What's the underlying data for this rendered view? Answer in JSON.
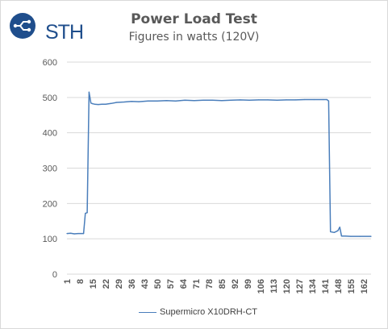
{
  "header": {
    "logo_text": "STH"
  },
  "colors": {
    "series": "#4a7ebb",
    "gridline": "#d9d9d9",
    "axis_text": "#595959",
    "logo": "#1f4e8c"
  },
  "chart_data": {
    "type": "line",
    "title": "Power Load Test",
    "subtitle": "Figures in watts (120V)",
    "xlabel": "",
    "ylabel": "",
    "ylim": [
      0,
      600
    ],
    "y_ticks": [
      0,
      100,
      200,
      300,
      400,
      500,
      600
    ],
    "x_range": [
      1,
      166
    ],
    "x_ticks": [
      1,
      8,
      15,
      22,
      29,
      36,
      43,
      50,
      57,
      64,
      71,
      78,
      85,
      92,
      99,
      106,
      113,
      120,
      127,
      134,
      141,
      148,
      155,
      162
    ],
    "grid": true,
    "legend_position": "bottom",
    "series": [
      {
        "name": "Supermicro X10DRH-CT",
        "x": [
          1,
          3,
          5,
          7,
          10,
          11,
          12,
          13,
          14,
          15,
          16,
          18,
          20,
          22,
          25,
          28,
          32,
          36,
          40,
          45,
          50,
          55,
          60,
          65,
          70,
          75,
          80,
          85,
          90,
          95,
          100,
          105,
          110,
          115,
          120,
          125,
          130,
          135,
          140,
          142,
          143,
          144,
          146,
          148,
          149,
          150,
          152,
          155,
          160,
          166
        ],
        "values": [
          115,
          116,
          114,
          115,
          115,
          172,
          174,
          515,
          484,
          482,
          481,
          480,
          481,
          481,
          483,
          486,
          487,
          489,
          488,
          490,
          490,
          491,
          490,
          492,
          491,
          492,
          492,
          491,
          492,
          493,
          492,
          493,
          493,
          492,
          493,
          493,
          494,
          494,
          494,
          494,
          490,
          120,
          118,
          123,
          133,
          108,
          108,
          107,
          107,
          107
        ]
      }
    ]
  }
}
